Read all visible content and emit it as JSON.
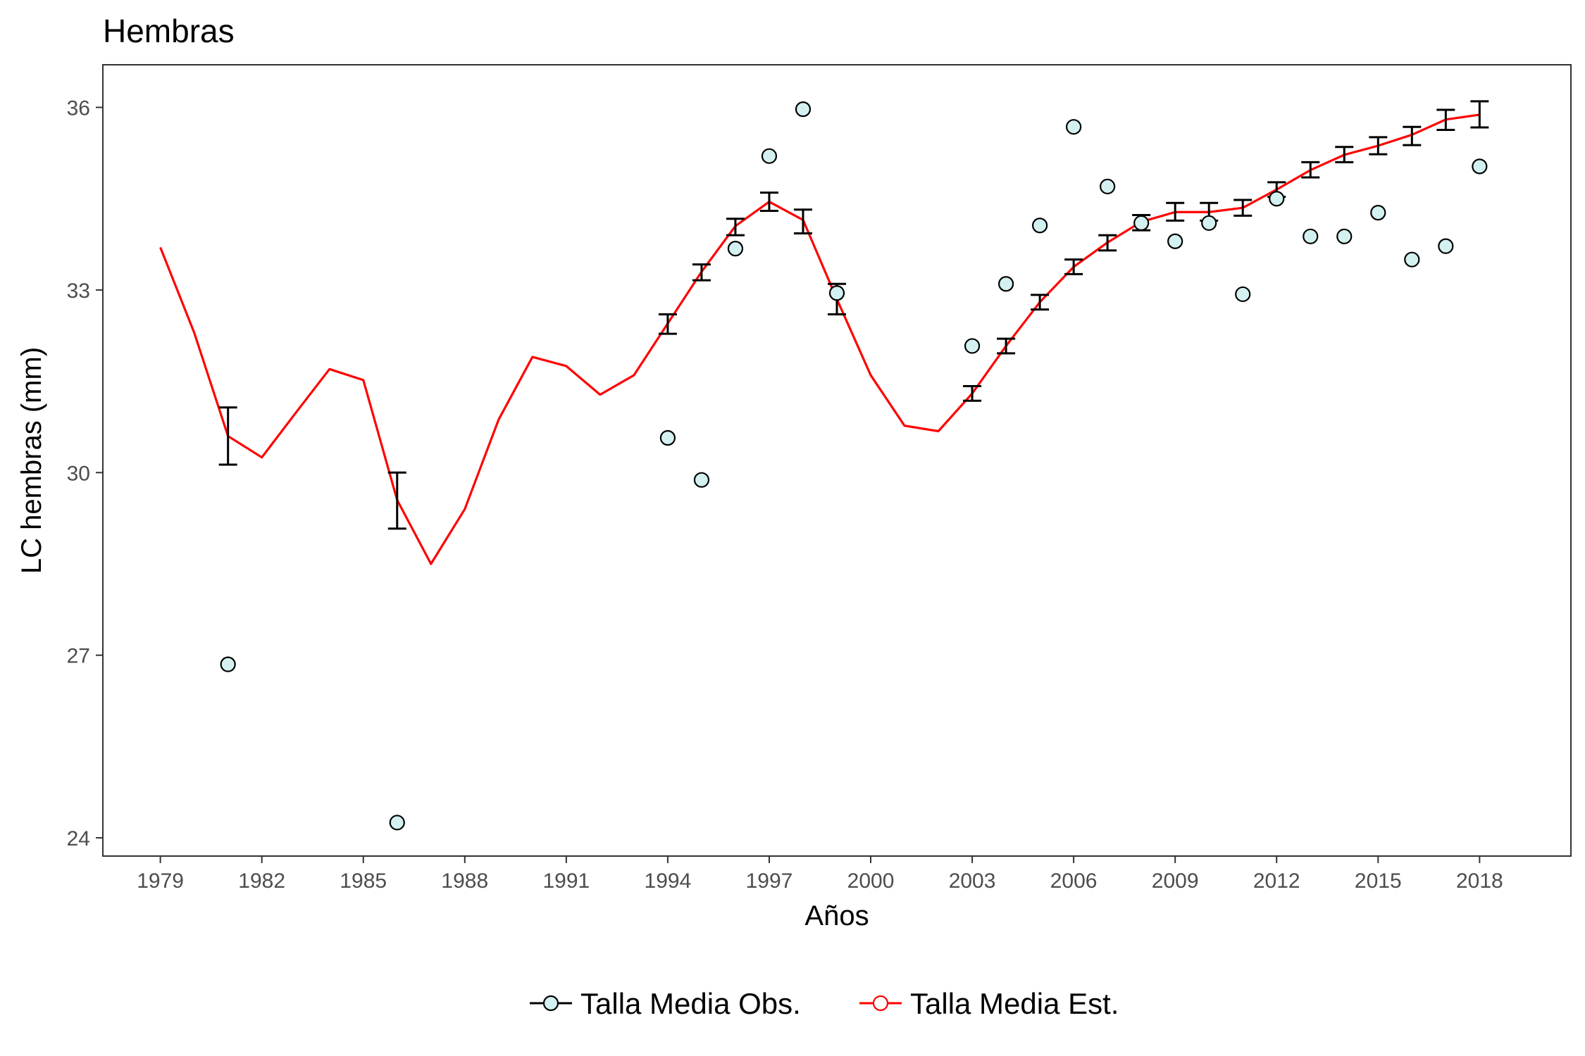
{
  "chart_data": {
    "type": "line",
    "title": "Hembras",
    "xlabel": "Años",
    "ylabel": "LC hembras (mm)",
    "xlim": [
      1977.3,
      2020.7
    ],
    "ylim": [
      23.7,
      36.7
    ],
    "x_ticks": [
      1979,
      1982,
      1985,
      1988,
      1991,
      1994,
      1997,
      2000,
      2003,
      2006,
      2009,
      2012,
      2015,
      2018
    ],
    "y_ticks": [
      24,
      27,
      30,
      33,
      36
    ],
    "grid": false,
    "legend_position": "bottom",
    "colors": {
      "observed_fill": "#d4f1f1",
      "observed_stroke": "#000000",
      "estimated_line": "#ff0000",
      "errorbar": "#000000"
    },
    "series": [
      {
        "name": "Talla Media Obs.",
        "kind": "points",
        "points": [
          [
            1981,
            26.85
          ],
          [
            1986,
            24.25
          ],
          [
            1994,
            30.57
          ],
          [
            1995,
            29.88
          ],
          [
            1996,
            33.68
          ],
          [
            1997,
            35.2
          ],
          [
            1998,
            35.97
          ],
          [
            1999,
            32.95
          ],
          [
            2003,
            32.08
          ],
          [
            2004,
            33.1
          ],
          [
            2005,
            34.06
          ],
          [
            2006,
            35.68
          ],
          [
            2007,
            34.7
          ],
          [
            2008,
            34.1
          ],
          [
            2009,
            33.8
          ],
          [
            2010,
            34.1
          ],
          [
            2011,
            32.93
          ],
          [
            2012,
            34.5
          ],
          [
            2013,
            33.88
          ],
          [
            2014,
            33.88
          ],
          [
            2015,
            34.27
          ],
          [
            2016,
            33.5
          ],
          [
            2017,
            33.72
          ],
          [
            2018,
            35.03
          ]
        ]
      },
      {
        "name": "Talla Media Est.",
        "kind": "line",
        "points": [
          [
            1979,
            33.7
          ],
          [
            1980,
            32.3
          ],
          [
            1981,
            30.6
          ],
          [
            1982,
            30.25
          ],
          [
            1983,
            30.98
          ],
          [
            1984,
            31.7
          ],
          [
            1985,
            31.52
          ],
          [
            1986,
            29.55
          ],
          [
            1987,
            28.5
          ],
          [
            1988,
            29.4
          ],
          [
            1989,
            30.87
          ],
          [
            1990,
            31.9
          ],
          [
            1991,
            31.75
          ],
          [
            1992,
            31.28
          ],
          [
            1993,
            31.6
          ],
          [
            1994,
            32.45
          ],
          [
            1995,
            33.3
          ],
          [
            1996,
            34.05
          ],
          [
            1997,
            34.45
          ],
          [
            1998,
            34.15
          ],
          [
            1999,
            32.85
          ],
          [
            2000,
            31.6
          ],
          [
            2001,
            30.77
          ],
          [
            2002,
            30.68
          ],
          [
            2003,
            31.3
          ],
          [
            2004,
            32.08
          ],
          [
            2005,
            32.8
          ],
          [
            2006,
            33.38
          ],
          [
            2007,
            33.78
          ],
          [
            2008,
            34.12
          ],
          [
            2009,
            34.28
          ],
          [
            2010,
            34.28
          ],
          [
            2011,
            34.35
          ],
          [
            2012,
            34.65
          ],
          [
            2013,
            34.97
          ],
          [
            2014,
            35.22
          ],
          [
            2015,
            35.37
          ],
          [
            2016,
            35.55
          ],
          [
            2017,
            35.8
          ],
          [
            2018,
            35.88
          ]
        ]
      }
    ],
    "error_bars": [
      {
        "x": 1981,
        "low": 30.13,
        "high": 31.07
      },
      {
        "x": 1986,
        "low": 29.08,
        "high": 30.0
      },
      {
        "x": 1994,
        "low": 32.28,
        "high": 32.6
      },
      {
        "x": 1995,
        "low": 33.16,
        "high": 33.42
      },
      {
        "x": 1996,
        "low": 33.9,
        "high": 34.17
      },
      {
        "x": 1997,
        "low": 34.3,
        "high": 34.6
      },
      {
        "x": 1998,
        "low": 33.93,
        "high": 34.32
      },
      {
        "x": 1999,
        "low": 32.6,
        "high": 33.1
      },
      {
        "x": 2003,
        "low": 31.18,
        "high": 31.42
      },
      {
        "x": 2004,
        "low": 31.96,
        "high": 32.2
      },
      {
        "x": 2005,
        "low": 32.68,
        "high": 32.92
      },
      {
        "x": 2006,
        "low": 33.26,
        "high": 33.5
      },
      {
        "x": 2007,
        "low": 33.65,
        "high": 33.9
      },
      {
        "x": 2008,
        "low": 33.98,
        "high": 34.23
      },
      {
        "x": 2009,
        "low": 34.14,
        "high": 34.43
      },
      {
        "x": 2010,
        "low": 34.14,
        "high": 34.43
      },
      {
        "x": 2011,
        "low": 34.22,
        "high": 34.48
      },
      {
        "x": 2012,
        "low": 34.53,
        "high": 34.77
      },
      {
        "x": 2013,
        "low": 34.85,
        "high": 35.1
      },
      {
        "x": 2014,
        "low": 35.1,
        "high": 35.35
      },
      {
        "x": 2015,
        "low": 35.23,
        "high": 35.51
      },
      {
        "x": 2016,
        "low": 35.38,
        "high": 35.68
      },
      {
        "x": 2017,
        "low": 35.63,
        "high": 35.96
      },
      {
        "x": 2018,
        "low": 35.67,
        "high": 36.1
      }
    ]
  }
}
